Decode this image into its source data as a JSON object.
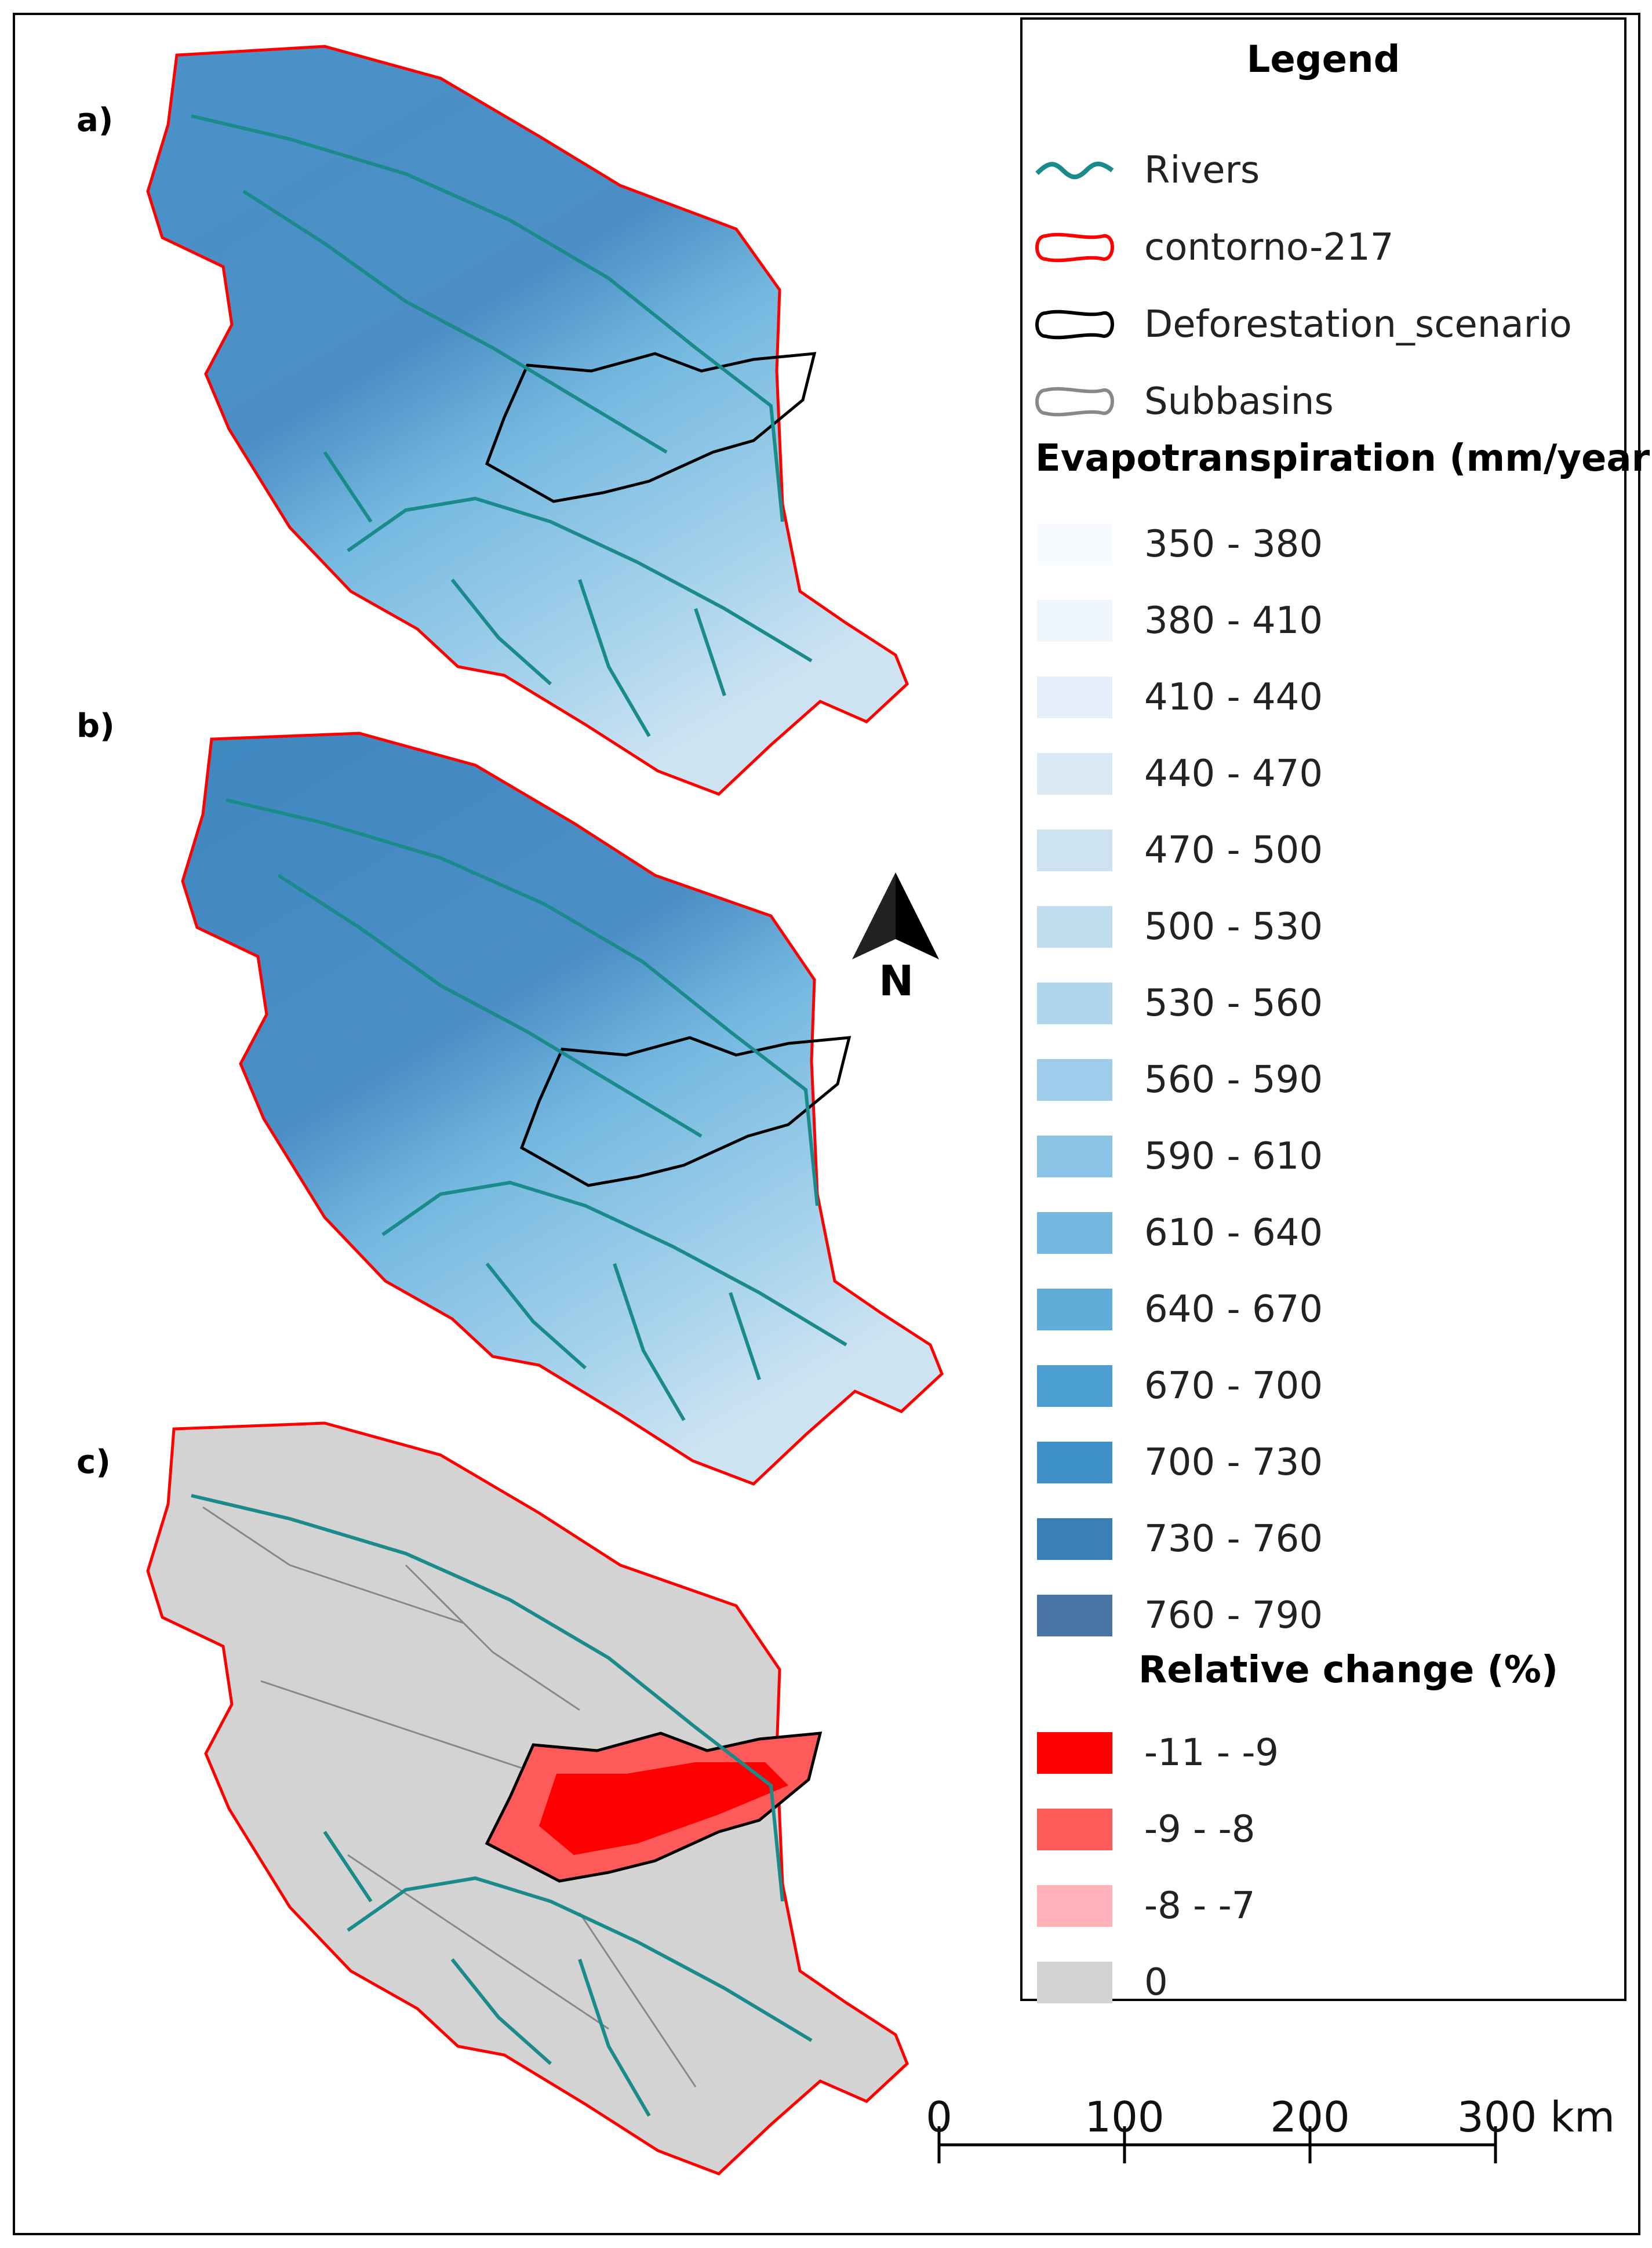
{
  "panels": [
    {
      "label": "a)"
    },
    {
      "label": "b)"
    },
    {
      "label": "c)"
    }
  ],
  "legend": {
    "title": "Legend",
    "layers": [
      {
        "label": "Rivers",
        "icon": "river-line-icon",
        "color": "#1a8a8a"
      },
      {
        "label": "contorno-217",
        "icon": "red-outline-icon",
        "color": "#ff0000"
      },
      {
        "label": "Deforestation_scenario",
        "icon": "black-outline-icon",
        "color": "#000000"
      },
      {
        "label": "Subbasins",
        "icon": "gray-outline-icon",
        "color": "#888888"
      }
    ],
    "et_title": "Evapotranspiration (mm/year)",
    "et_classes": [
      {
        "label": "350 - 380",
        "color": "#f7fbff"
      },
      {
        "label": "380 - 410",
        "color": "#eef5fd"
      },
      {
        "label": "410 - 440",
        "color": "#e4eff9"
      },
      {
        "label": "440 - 470",
        "color": "#d9e9f6"
      },
      {
        "label": "470 - 500",
        "color": "#cde3f2"
      },
      {
        "label": "500 - 530",
        "color": "#c0ddee"
      },
      {
        "label": "530 - 560",
        "color": "#afd6ec"
      },
      {
        "label": "560 - 590",
        "color": "#9dcdea"
      },
      {
        "label": "590 - 610",
        "color": "#89c3e5"
      },
      {
        "label": "610 - 640",
        "color": "#74b8e0"
      },
      {
        "label": "640 - 670",
        "color": "#5fadd9"
      },
      {
        "label": "670 - 700",
        "color": "#4b9fd2"
      },
      {
        "label": "700 - 730",
        "color": "#3d8fc7"
      },
      {
        "label": "730 - 760",
        "color": "#3b7fb8"
      },
      {
        "label": "760 - 790",
        "color": "#4a74a4"
      }
    ],
    "rc_title": "Relative change (%)",
    "rc_classes": [
      {
        "label": "-11 - -9",
        "color": "#ff0000"
      },
      {
        "label": "-9 - -8",
        "color": "#ff5a5a"
      },
      {
        "label": "-8 - -7",
        "color": "#ffb0b8"
      },
      {
        "label": "0",
        "color": "#d3d3d3"
      }
    ]
  },
  "north_arrow": {
    "label": "N"
  },
  "scale_bar": {
    "ticks": [
      "0",
      "100",
      "200",
      "300 km"
    ]
  }
}
